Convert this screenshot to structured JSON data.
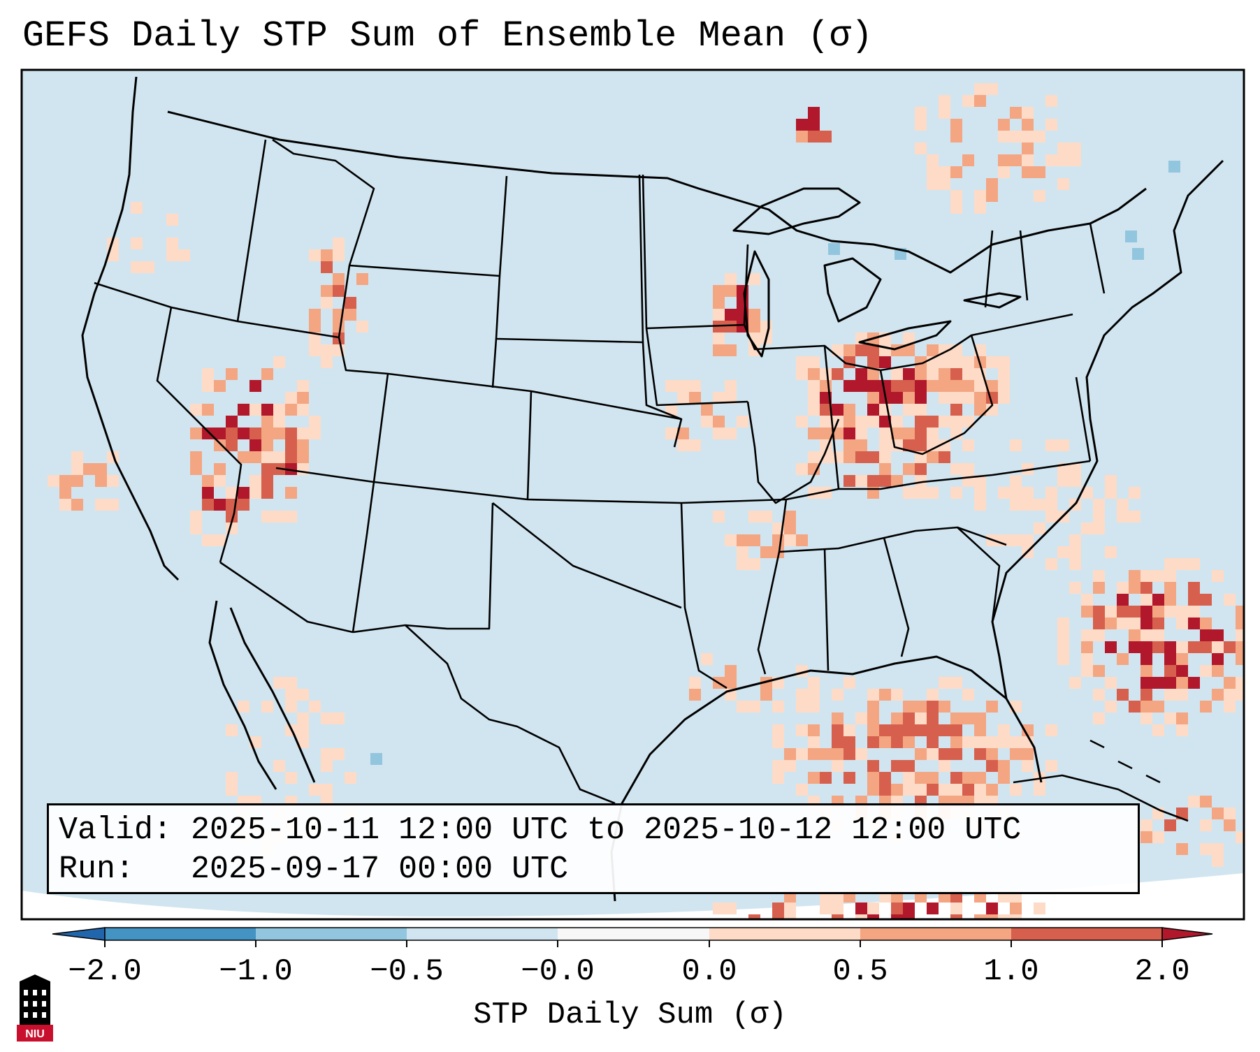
{
  "title": "GEFS Daily STP Sum of Ensemble Mean (σ)",
  "info": {
    "valid_line": "Valid: 2025-10-11 12:00 UTC to 2025-10-12 12:00 UTC",
    "run_line": "Run:   2025-09-17 00:00 UTC"
  },
  "colorbar": {
    "label": "STP Daily Sum (σ)",
    "ticks": [
      "−2.0",
      "−1.0",
      "−0.5",
      "−0.0",
      "0.0",
      "0.5",
      "1.0",
      "2.0"
    ],
    "colors": [
      "#2166ac",
      "#4393c3",
      "#92c5de",
      "#d1e5f0",
      "#f7f7f7",
      "#fddbc7",
      "#f4a582",
      "#d6604d",
      "#b2182b"
    ]
  },
  "logo": {
    "text": "NIU",
    "colors": [
      "#c8102e",
      "#000000"
    ]
  },
  "palette": {
    "background": "#d1e5f0",
    "light_red": "#fddbc7",
    "mid_red": "#f4a582",
    "red": "#d6604d",
    "dark_red": "#b2182b",
    "light_blue": "#92c5de"
  }
}
